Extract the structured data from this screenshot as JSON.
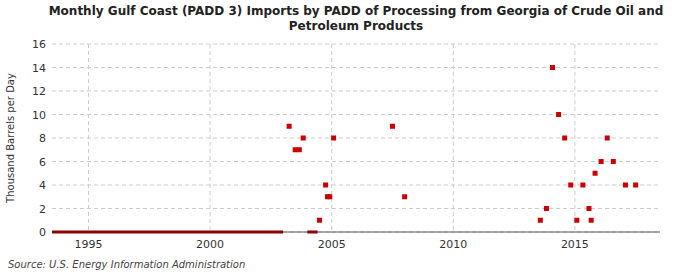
{
  "chart_data": {
    "type": "scatter",
    "title": "Monthly Gulf Coast (PADD 3) Imports by PADD of Processing from Georgia of Crude Oil and\nPetroleum Products",
    "ylabel": "Thousand Barrels per Day",
    "source": "Source: U.S. Energy Information Administration",
    "xlim": [
      1993.5,
      2018.5
    ],
    "xticks": [
      1995,
      2000,
      2005,
      2010,
      2015
    ],
    "ylim": [
      0,
      16
    ],
    "yticks": [
      0,
      2,
      4,
      6,
      8,
      10,
      12,
      14,
      16
    ],
    "grid": true,
    "series": [
      {
        "type": "scatter",
        "color": "#cc0000",
        "marker": "square",
        "x": [
          2003.25,
          2003.5,
          2003.67,
          2003.83,
          2004.5,
          2004.75,
          2004.83,
          2004.92,
          2005.08,
          2007.5,
          2008.0,
          2013.58,
          2013.83,
          2014.08,
          2014.33,
          2014.58,
          2014.83,
          2015.08,
          2015.33,
          2015.58,
          2015.67,
          2015.83,
          2016.08,
          2016.33,
          2016.58,
          2017.08,
          2017.5
        ],
        "values": [
          9,
          7,
          7,
          8,
          1,
          4,
          3,
          3,
          8,
          9,
          3,
          1,
          2,
          14,
          10,
          8,
          4,
          1,
          4,
          2,
          1,
          5,
          6,
          8,
          6,
          4,
          4
        ]
      },
      {
        "type": "line",
        "color": "#8B0000",
        "x": [
          1993.5,
          2003.0
        ],
        "values": [
          0,
          0
        ]
      },
      {
        "type": "line",
        "color": "#8B0000",
        "x": [
          2004.0,
          2004.42
        ],
        "values": [
          0,
          0
        ]
      }
    ]
  }
}
